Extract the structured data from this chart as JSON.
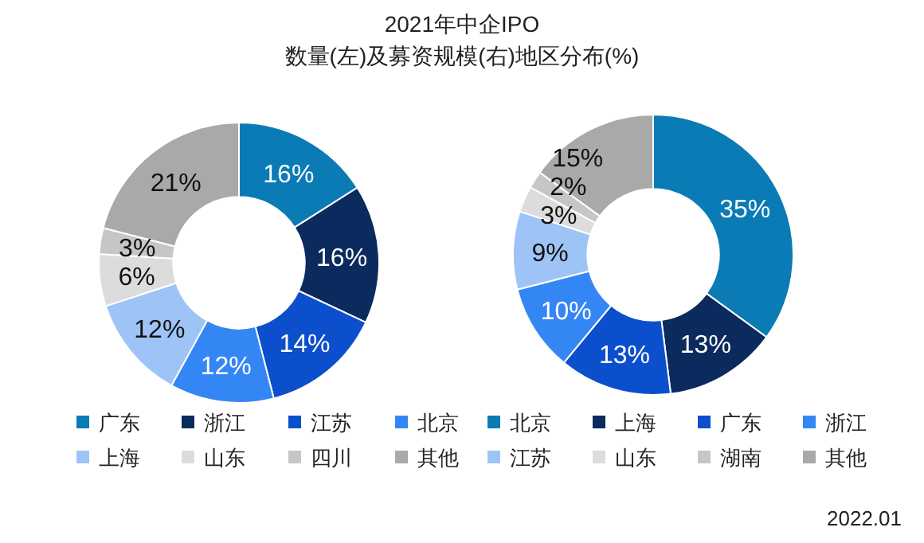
{
  "chart_data": [
    {
      "type": "donut",
      "title": "2021年中企IPO",
      "subtitle": "数量(左)及募资规模(右)地区分布(%)",
      "categories": [
        "广东",
        "浙江",
        "江苏",
        "北京",
        "上海",
        "山东",
        "四川",
        "其他"
      ],
      "values": [
        16,
        16,
        14,
        12,
        12,
        6,
        3,
        21
      ],
      "colors": [
        "#0a7bb5",
        "#0b2a5e",
        "#0b4fcc",
        "#3586f5",
        "#9ec4f7",
        "#dcdcdc",
        "#c6c6c6",
        "#a9a9a9"
      ],
      "value_labels": [
        "16%",
        "16%",
        "14%",
        "12%",
        "12%",
        "6%",
        "3%",
        "21%"
      ],
      "legend": "bottom"
    },
    {
      "type": "donut",
      "categories": [
        "北京",
        "上海",
        "广东",
        "浙江",
        "江苏",
        "山东",
        "湖南",
        "其他"
      ],
      "values": [
        35,
        13,
        13,
        10,
        9,
        3,
        2,
        15
      ],
      "colors": [
        "#0a7bb5",
        "#0b2a5e",
        "#0b4fcc",
        "#3586f5",
        "#9ec4f7",
        "#dcdcdc",
        "#c6c6c6",
        "#a9a9a9"
      ],
      "value_labels": [
        "35%",
        "13%",
        "13%",
        "10%",
        "9%",
        "3%",
        "2%",
        "15%"
      ],
      "legend": "bottom",
      "annotations": [
        "2022.01"
      ]
    }
  ]
}
